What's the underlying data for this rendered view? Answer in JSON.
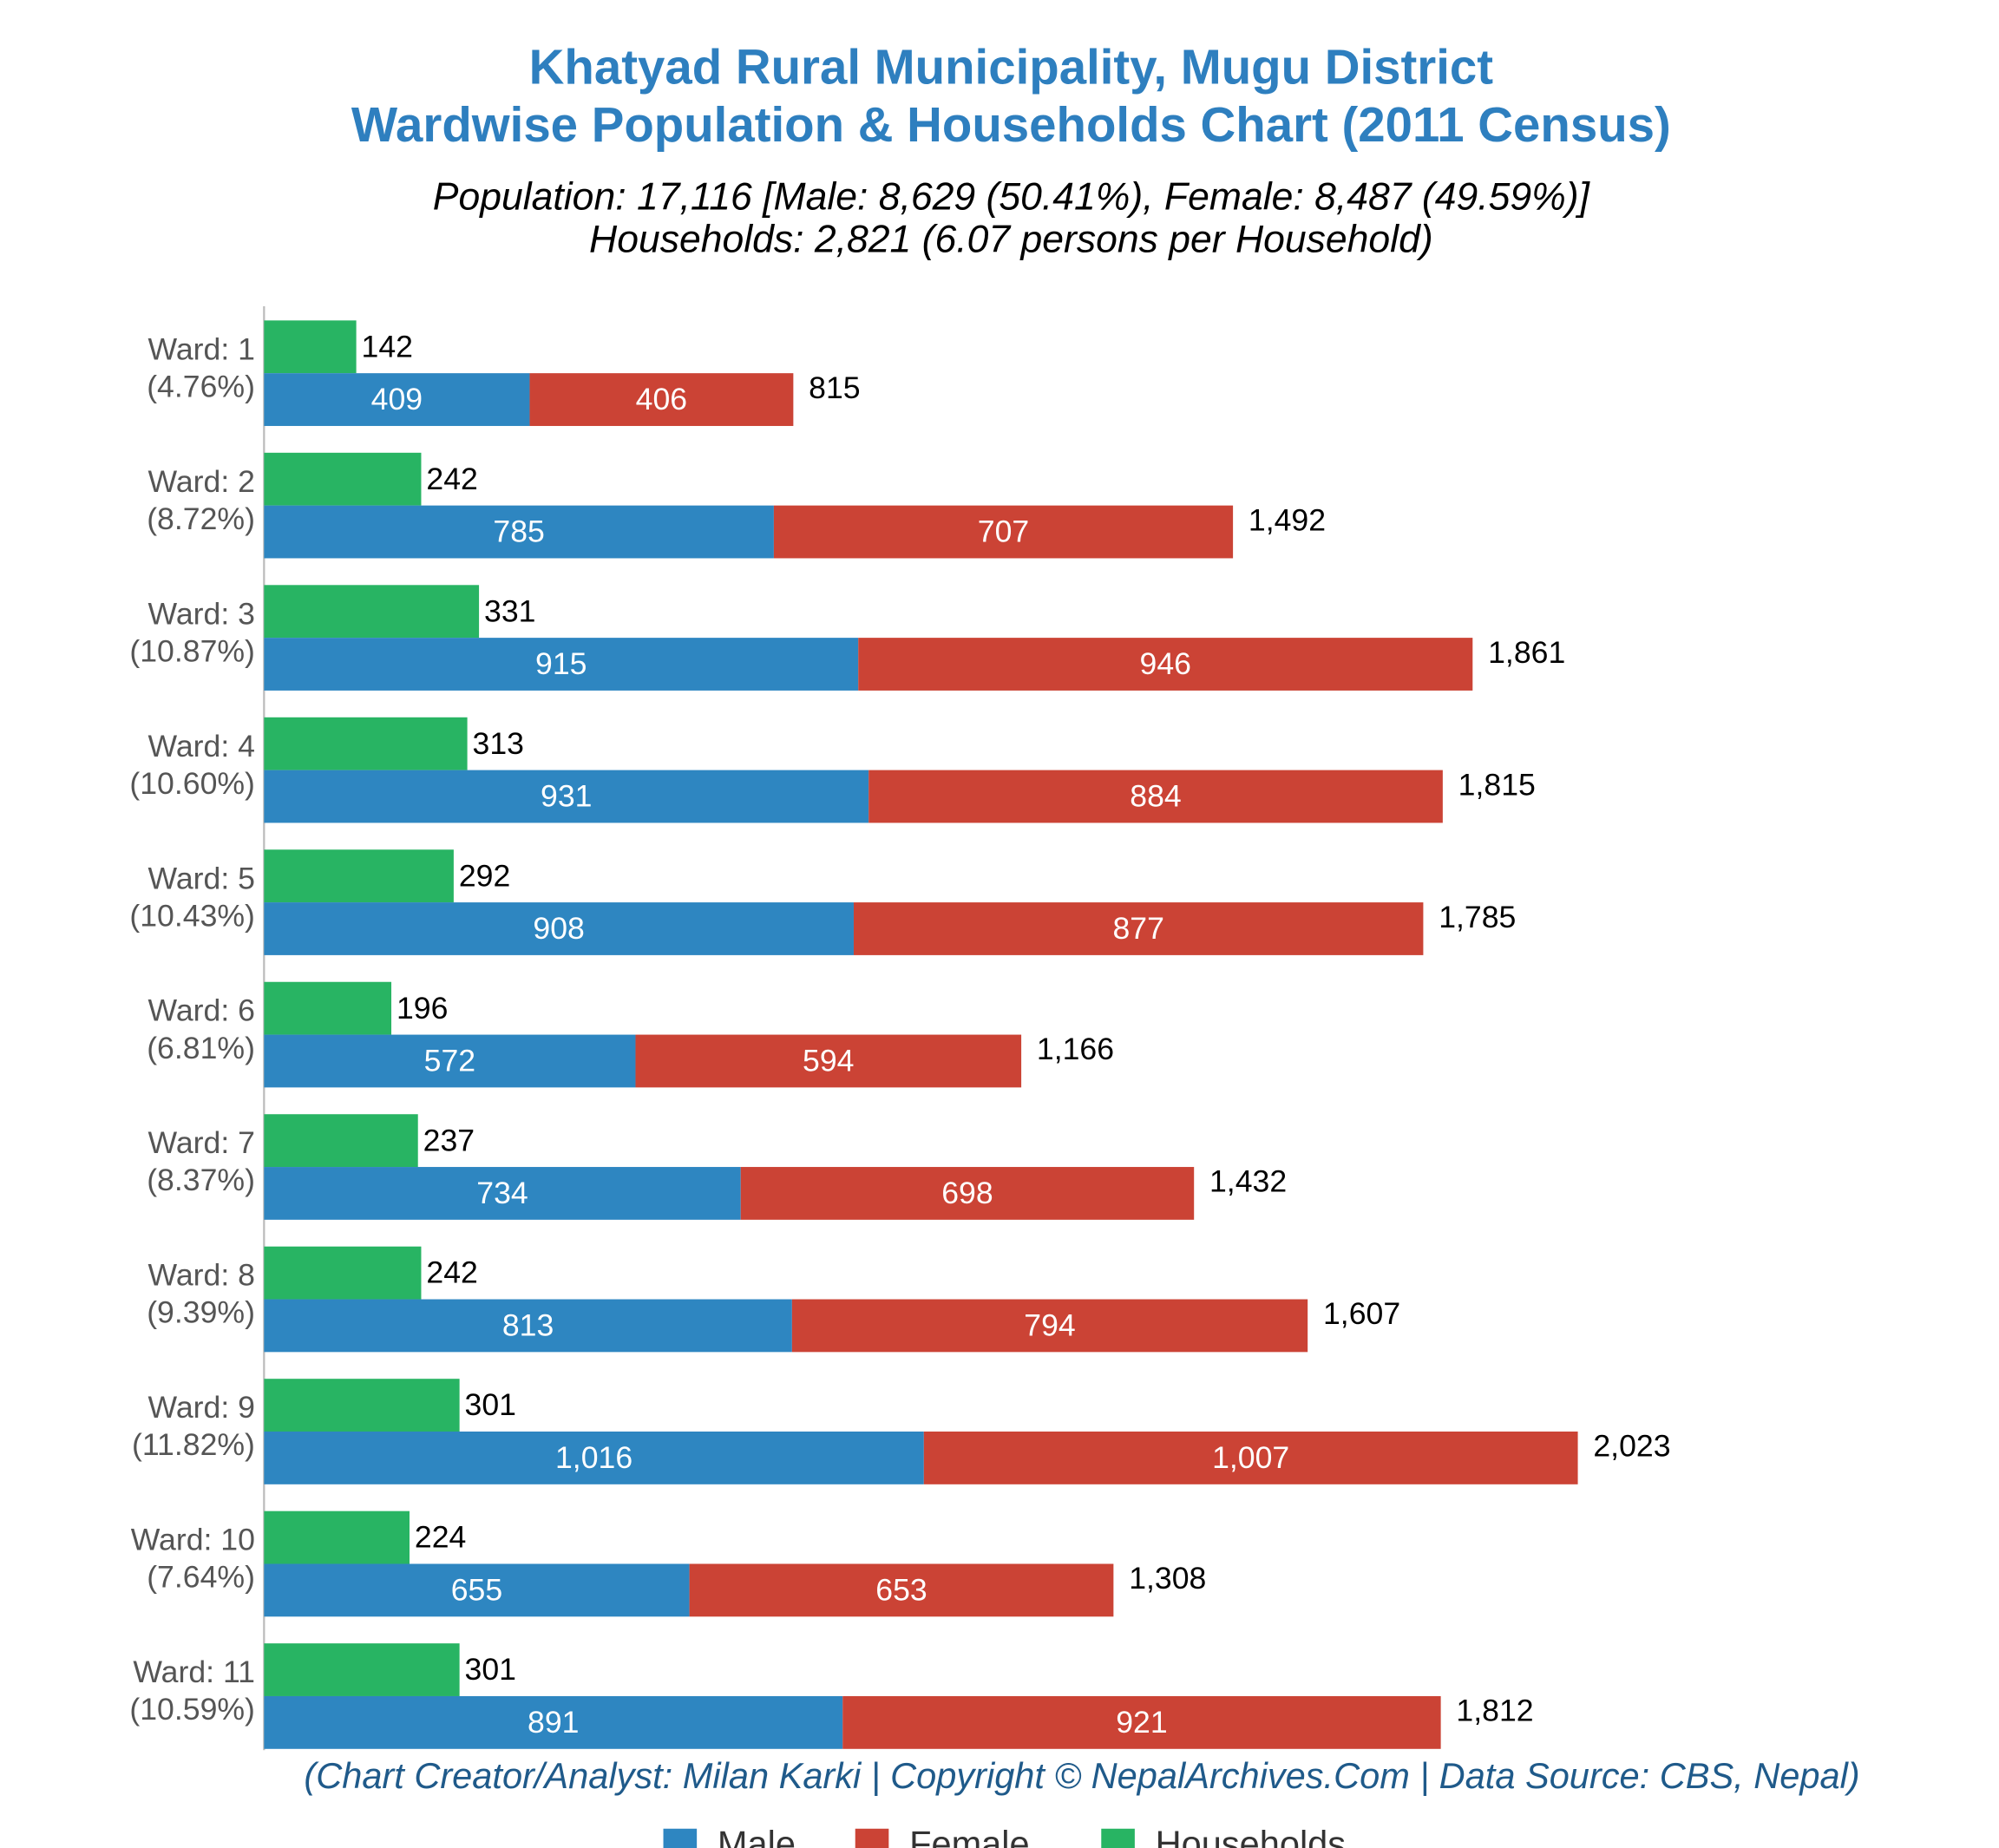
{
  "chart_data": {
    "type": "bar",
    "title": [
      "Khatyad Rural Municipality, Mugu District",
      "Wardwise Population & Households Chart (2011 Census)"
    ],
    "subtitle": [
      "Population: 17,116 [Male: 8,629 (50.41%), Female: 8,487 (49.59%)]",
      "Households: 2,821 (6.07 persons per Household)"
    ],
    "footer": "(Chart Creator/Analyst: Milan Karki | Copyright © NepalArchives.Com | Data Source: CBS, Nepal)",
    "categories": [
      "Ward: 1",
      "Ward: 2",
      "Ward: 3",
      "Ward: 4",
      "Ward: 5",
      "Ward: 6",
      "Ward: 7",
      "Ward: 8",
      "Ward: 9",
      "Ward: 10",
      "Ward: 11"
    ],
    "category_shares": [
      "(4.76%)",
      "(8.72%)",
      "(10.87%)",
      "(10.60%)",
      "(10.43%)",
      "(6.81%)",
      "(8.37%)",
      "(9.39%)",
      "(11.82%)",
      "(7.64%)",
      "(10.59%)"
    ],
    "series": [
      {
        "name": "Male",
        "color": "#2e86c1",
        "values": [
          409,
          785,
          915,
          931,
          908,
          572,
          734,
          813,
          1016,
          655,
          891
        ],
        "value_labels": [
          "409",
          "785",
          "915",
          "931",
          "908",
          "572",
          "734",
          "813",
          "1,016",
          "655",
          "891"
        ]
      },
      {
        "name": "Female",
        "color": "#cb4335",
        "values": [
          406,
          707,
          946,
          884,
          877,
          594,
          698,
          794,
          1007,
          653,
          921
        ],
        "value_labels": [
          "406",
          "707",
          "946",
          "884",
          "877",
          "594",
          "698",
          "794",
          "1,007",
          "653",
          "921"
        ]
      },
      {
        "name": "Households",
        "color": "#28b463",
        "values": [
          142,
          242,
          331,
          313,
          292,
          196,
          237,
          242,
          301,
          224,
          301
        ],
        "value_labels": [
          "142",
          "242",
          "331",
          "313",
          "292",
          "196",
          "237",
          "242",
          "301",
          "224",
          "301"
        ]
      }
    ],
    "totals": [
      815,
      1492,
      1861,
      1815,
      1785,
      1166,
      1432,
      1607,
      2023,
      1308,
      1812
    ],
    "total_labels": [
      "815",
      "1,492",
      "1,861",
      "1,815",
      "1,785",
      "1,166",
      "1,432",
      "1,607",
      "2,023",
      "1,308",
      "1,812"
    ]
  }
}
